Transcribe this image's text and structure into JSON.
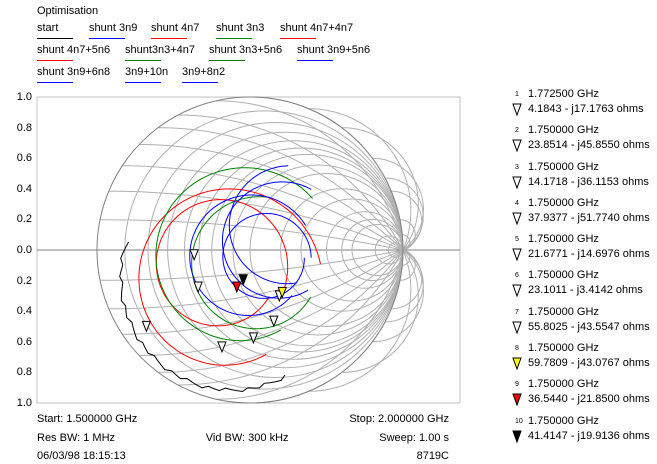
{
  "title": "Optimisation",
  "legend": [
    {
      "label": "start",
      "color": "#000000"
    },
    {
      "label": "shunt 3n9",
      "color": "#0000ff"
    },
    {
      "label": "shunt 4n7",
      "color": "#ff0000"
    },
    {
      "label": "shunt 3n3",
      "color": "#008000"
    },
    {
      "label": "shunt 4n7+4n7",
      "color": "#ff0000"
    },
    {
      "label": "shunt 4n7+5n6",
      "color": "#ff0000"
    },
    {
      "label": "shunt3n3+4n7",
      "color": "#008000"
    },
    {
      "label": "shunt 3n3+5n6",
      "color": "#008000"
    },
    {
      "label": "shunt 3n9+5n6",
      "color": "#0000ff"
    },
    {
      "label": "shunt 3n9+6n8",
      "color": "#0000ff"
    },
    {
      "label": "3n9+10n",
      "color": "#0000ff"
    },
    {
      "label": "3n9+8n2",
      "color": "#0000ff"
    }
  ],
  "y_ticks": [
    "1.0",
    "0.8",
    "0.6",
    "0.4",
    "0.2",
    "0.0",
    "0.2",
    "0.4",
    "0.6",
    "0.8",
    "1.0"
  ],
  "markers": [
    {
      "n": "1",
      "freq": "1.772500 GHz",
      "imp": "4.1843 - j17.1763 ohms",
      "r": 4.1843,
      "x": -17.1763,
      "fill": "#ffffff"
    },
    {
      "n": "2",
      "freq": "1.750000 GHz",
      "imp": "23.8514 - j45.8550 ohms",
      "r": 23.8514,
      "x": -45.855,
      "fill": "#ffffff"
    },
    {
      "n": "3",
      "freq": "1.750000 GHz",
      "imp": "14.1718 - j36.1153 ohms",
      "r": 14.1718,
      "x": -36.1153,
      "fill": "#ffffff"
    },
    {
      "n": "4",
      "freq": "1.750000 GHz",
      "imp": "37.9377 - j51.7740 ohms",
      "r": 37.9377,
      "x": -51.774,
      "fill": "#ffffff"
    },
    {
      "n": "5",
      "freq": "1.750000 GHz",
      "imp": "21.6771 - j14.6976 ohms",
      "r": 21.6771,
      "x": -14.6976,
      "fill": "#ffffff"
    },
    {
      "n": "6",
      "freq": "1.750000 GHz",
      "imp": "23.1011 - j3.4142 ohms",
      "r": 23.1011,
      "x": -3.4142,
      "fill": "#ffffff"
    },
    {
      "n": "7",
      "freq": "1.750000 GHz",
      "imp": "55.8025 - j43.5547 ohms",
      "r": 55.8025,
      "x": -43.5547,
      "fill": "#ffffff"
    },
    {
      "n": "8",
      "freq": "1.750000 GHz",
      "imp": "59.7809 - j43.0767 ohms",
      "r": 59.7809,
      "x": -43.0767,
      "fill": "#ffff00"
    },
    {
      "n": "9",
      "freq": "1.750000 GHz",
      "imp": "36.5440 - j21.8500 ohms",
      "r": 36.544,
      "x": -21.85,
      "fill": "#ff0000"
    },
    {
      "n": "10",
      "freq": "1.750000 GHz",
      "imp": "41.4147 - j19.9136 ohms",
      "r": 41.4147,
      "x": -19.9136,
      "fill": "#000000"
    }
  ],
  "footer": {
    "start": "Start: 1.500000 GHz",
    "stop": "Stop: 2.000000 GHz",
    "res_bw": "Res BW: 1 MHz",
    "vid_bw": "Vid BW: 300 kHz",
    "sweep": "Sweep: 1.00 s",
    "datetime": "06/03/98 18:15:13",
    "model": "8719C"
  }
}
